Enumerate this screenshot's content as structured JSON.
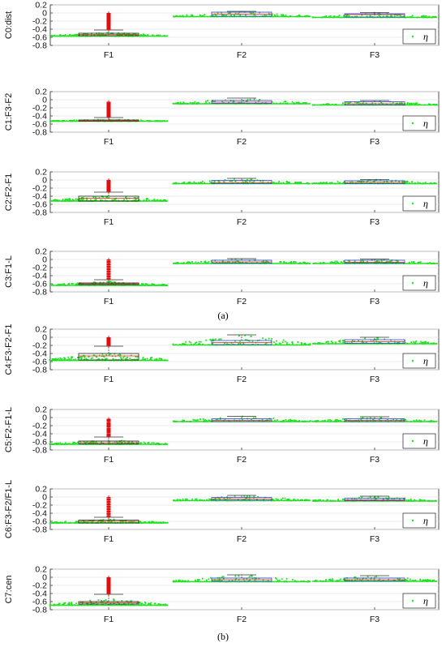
{
  "captions": {
    "top": "(a)",
    "bottom": "(b)"
  },
  "chart_data": [
    {
      "type": "box",
      "ylabel": "C0:dist",
      "categories": [
        "F1",
        "F2",
        "F3"
      ],
      "ylim": [
        -0.8,
        0.2
      ],
      "yticks": [
        "0.2",
        "0",
        "-0.2",
        "-0.4",
        "-0.6",
        "-0.8"
      ],
      "legend": {
        "label": "η",
        "position": "lower-right"
      },
      "series": [
        {
          "name": "F1",
          "spread_min": -0.57,
          "spread_max": -0.48,
          "q1": -0.56,
          "median": -0.53,
          "q3": -0.5,
          "whisker_low": -0.56,
          "whisker_high": -0.42,
          "outlier_range": [
            -0.4,
            0.0
          ]
        },
        {
          "name": "F2",
          "spread_min": -0.09,
          "spread_max": 0.04,
          "q1": -0.08,
          "median": -0.03,
          "q3": 0.02,
          "whisker_low": -0.09,
          "whisker_high": 0.04,
          "outlier_range": null
        },
        {
          "name": "F3",
          "spread_min": -0.11,
          "spread_max": 0.01,
          "q1": -0.1,
          "median": -0.04,
          "q3": -0.02,
          "whisker_low": -0.11,
          "whisker_high": 0.01,
          "outlier_range": null
        }
      ]
    },
    {
      "type": "box",
      "ylabel": "C1:F3-F2",
      "categories": [
        "F1",
        "F2",
        "F3"
      ],
      "ylim": [
        -0.8,
        0.2
      ],
      "yticks": [
        "0.2",
        "0",
        "-0.2",
        "-0.4",
        "-0.6",
        "-0.8"
      ],
      "legend": {
        "label": "η",
        "position": "lower-right"
      },
      "series": [
        {
          "name": "F1",
          "spread_min": -0.53,
          "spread_max": -0.48,
          "q1": -0.53,
          "median": -0.52,
          "q3": -0.5,
          "whisker_low": -0.53,
          "whisker_high": -0.44,
          "outlier_range": [
            -0.42,
            -0.05
          ]
        },
        {
          "name": "F2",
          "spread_min": -0.1,
          "spread_max": 0.04,
          "q1": -0.09,
          "median": -0.06,
          "q3": -0.02,
          "whisker_low": -0.1,
          "whisker_high": 0.04,
          "outlier_range": null
        },
        {
          "name": "F3",
          "spread_min": -0.13,
          "spread_max": -0.02,
          "q1": -0.13,
          "median": -0.1,
          "q3": -0.05,
          "whisker_low": -0.13,
          "whisker_high": -0.02,
          "outlier_range": null
        }
      ]
    },
    {
      "type": "box",
      "ylabel": "C2:F2-F1",
      "categories": [
        "F1",
        "F2",
        "F3"
      ],
      "ylim": [
        -0.8,
        0.2
      ],
      "yticks": [
        "0.2",
        "0",
        "-0.2",
        "-0.4",
        "-0.6",
        "-0.8"
      ],
      "legend": {
        "label": "η",
        "position": "lower-right"
      },
      "series": [
        {
          "name": "F1",
          "spread_min": -0.52,
          "spread_max": -0.38,
          "q1": -0.52,
          "median": -0.45,
          "q3": -0.4,
          "whisker_low": -0.52,
          "whisker_high": -0.3,
          "outlier_range": [
            -0.28,
            0.0
          ]
        },
        {
          "name": "F2",
          "spread_min": -0.09,
          "spread_max": 0.04,
          "q1": -0.09,
          "median": -0.06,
          "q3": -0.01,
          "whisker_low": -0.09,
          "whisker_high": 0.04,
          "outlier_range": null
        },
        {
          "name": "F3",
          "spread_min": -0.09,
          "spread_max": 0.01,
          "q1": -0.09,
          "median": -0.06,
          "q3": -0.02,
          "whisker_low": -0.09,
          "whisker_high": 0.01,
          "outlier_range": null
        }
      ]
    },
    {
      "type": "box",
      "ylabel": "C3:F1-L",
      "categories": [
        "F1",
        "F2",
        "F3"
      ],
      "ylim": [
        -0.8,
        0.2
      ],
      "yticks": [
        "0.2",
        "0",
        "-0.2",
        "-0.4",
        "-0.6",
        "-0.8"
      ],
      "legend": {
        "label": "η",
        "position": "lower-right"
      },
      "series": [
        {
          "name": "F1",
          "spread_min": -0.64,
          "spread_max": -0.54,
          "q1": -0.62,
          "median": -0.6,
          "q3": -0.58,
          "whisker_low": -0.64,
          "whisker_high": -0.5,
          "outlier_range": [
            -0.48,
            0.0
          ]
        },
        {
          "name": "F2",
          "spread_min": -0.1,
          "spread_max": 0.02,
          "q1": -0.09,
          "median": -0.06,
          "q3": -0.02,
          "whisker_low": -0.1,
          "whisker_high": 0.02,
          "outlier_range": null
        },
        {
          "name": "F3",
          "spread_min": -0.1,
          "spread_max": 0.01,
          "q1": -0.09,
          "median": -0.07,
          "q3": -0.02,
          "whisker_low": -0.1,
          "whisker_high": 0.01,
          "outlier_range": null
        }
      ]
    },
    {
      "type": "box",
      "ylabel": "C4:F3-F2-F1",
      "categories": [
        "F1",
        "F2",
        "F3"
      ],
      "ylim": [
        -0.8,
        0.2
      ],
      "yticks": [
        "0.2",
        "0",
        "-0.2",
        "-0.4",
        "-0.6",
        "-0.8"
      ],
      "legend": {
        "label": "η",
        "position": "lower-right"
      },
      "series": [
        {
          "name": "F1",
          "spread_min": -0.57,
          "spread_max": -0.38,
          "q1": -0.56,
          "median": -0.46,
          "q3": -0.4,
          "whisker_low": -0.57,
          "whisker_high": -0.22,
          "outlier_range": [
            -0.2,
            0.0
          ]
        },
        {
          "name": "F2",
          "spread_min": -0.19,
          "spread_max": 0.06,
          "q1": -0.18,
          "median": -0.13,
          "q3": -0.08,
          "whisker_low": -0.19,
          "whisker_high": 0.06,
          "outlier_range": null
        },
        {
          "name": "F3",
          "spread_min": -0.16,
          "spread_max": 0.0,
          "q1": -0.15,
          "median": -0.11,
          "q3": -0.06,
          "whisker_low": -0.16,
          "whisker_high": 0.0,
          "outlier_range": null
        }
      ]
    },
    {
      "type": "box",
      "ylabel": "C5:F2-F1-L",
      "categories": [
        "F1",
        "F2",
        "F3"
      ],
      "ylim": [
        -0.8,
        0.2
      ],
      "yticks": [
        "0.2",
        "0",
        "-0.2",
        "-0.4",
        "-0.6",
        "-0.8"
      ],
      "legend": {
        "label": "η",
        "position": "lower-right"
      },
      "series": [
        {
          "name": "F1",
          "spread_min": -0.66,
          "spread_max": -0.55,
          "q1": -0.65,
          "median": -0.62,
          "q3": -0.58,
          "whisker_low": -0.66,
          "whisker_high": -0.48,
          "outlier_range": [
            -0.46,
            -0.03
          ]
        },
        {
          "name": "F2",
          "spread_min": -0.1,
          "spread_max": 0.03,
          "q1": -0.1,
          "median": -0.07,
          "q3": -0.03,
          "whisker_low": -0.1,
          "whisker_high": 0.03,
          "outlier_range": null
        },
        {
          "name": "F3",
          "spread_min": -0.1,
          "spread_max": 0.02,
          "q1": -0.1,
          "median": -0.07,
          "q3": -0.03,
          "whisker_low": -0.1,
          "whisker_high": 0.02,
          "outlier_range": null
        }
      ]
    },
    {
      "type": "box",
      "ylabel": "C6:F3-F2/F1-L",
      "categories": [
        "F1",
        "F2",
        "F3"
      ],
      "ylim": [
        -0.8,
        0.2
      ],
      "yticks": [
        "0.2",
        "0",
        "-0.2",
        "-0.4",
        "-0.6",
        "-0.8"
      ],
      "legend": {
        "label": "η",
        "position": "lower-right"
      },
      "series": [
        {
          "name": "F1",
          "spread_min": -0.64,
          "spread_max": -0.55,
          "q1": -0.64,
          "median": -0.6,
          "q3": -0.57,
          "whisker_low": -0.64,
          "whisker_high": -0.5,
          "outlier_range": [
            -0.48,
            0.0
          ]
        },
        {
          "name": "F2",
          "spread_min": -0.09,
          "spread_max": 0.04,
          "q1": -0.08,
          "median": -0.05,
          "q3": -0.01,
          "whisker_low": -0.09,
          "whisker_high": 0.04,
          "outlier_range": null
        },
        {
          "name": "F3",
          "spread_min": -0.1,
          "spread_max": 0.02,
          "q1": -0.09,
          "median": -0.07,
          "q3": -0.03,
          "whisker_low": -0.1,
          "whisker_high": 0.02,
          "outlier_range": null
        }
      ]
    },
    {
      "type": "box",
      "ylabel": "C7:cen",
      "categories": [
        "F1",
        "F2",
        "F3"
      ],
      "ylim": [
        -0.8,
        0.2
      ],
      "yticks": [
        "0.2",
        "0",
        "-0.2",
        "-0.4",
        "-0.6",
        "-0.8"
      ],
      "legend": {
        "label": "η",
        "position": "lower-right"
      },
      "series": [
        {
          "name": "F1",
          "spread_min": -0.69,
          "spread_max": -0.53,
          "q1": -0.66,
          "median": -0.63,
          "q3": -0.6,
          "whisker_low": -0.69,
          "whisker_high": -0.42,
          "outlier_range": [
            -0.4,
            0.0
          ]
        },
        {
          "name": "F2",
          "spread_min": -0.11,
          "spread_max": 0.06,
          "q1": -0.1,
          "median": -0.06,
          "q3": -0.02,
          "whisker_low": -0.11,
          "whisker_high": 0.06,
          "outlier_range": null
        },
        {
          "name": "F3",
          "spread_min": -0.1,
          "spread_max": 0.04,
          "q1": -0.09,
          "median": -0.06,
          "q3": -0.02,
          "whisker_low": -0.1,
          "whisker_high": 0.04,
          "outlier_range": null
        }
      ]
    }
  ]
}
